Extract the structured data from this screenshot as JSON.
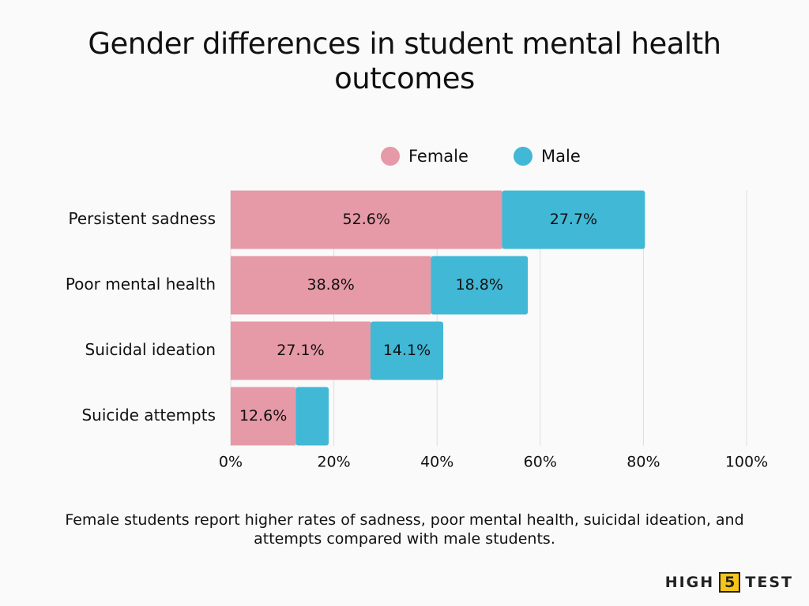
{
  "chart_data": {
    "type": "stacked-bar-horizontal",
    "title": "Gender differences in student mental health outcomes",
    "categories": [
      "Persistent sadness",
      "Poor mental health",
      "Suicidal ideation",
      "Suicide attempts"
    ],
    "series": [
      {
        "name": "Female",
        "color": "#e699a6",
        "values": [
          52.6,
          38.8,
          27.1,
          12.6
        ],
        "value_labels": [
          "52.6%",
          "38.8%",
          "27.1%",
          "12.6%"
        ]
      },
      {
        "name": "Male",
        "color": "#41b8d5",
        "values": [
          27.7,
          18.8,
          14.1,
          6.4
        ],
        "value_labels": [
          "27.7%",
          "18.8%",
          "14.1%",
          null
        ]
      }
    ],
    "xlim": [
      0,
      100
    ],
    "xticks": [
      {
        "value": 0,
        "label": "0%"
      },
      {
        "value": 20,
        "label": "20%"
      },
      {
        "value": 40,
        "label": "40%"
      },
      {
        "value": 60,
        "label": "60%"
      },
      {
        "value": 80,
        "label": "80%"
      },
      {
        "value": 100,
        "label": "100%"
      }
    ],
    "grid": true,
    "caption": "Female students report higher rates of sadness, poor mental health, suicidal ideation, and attempts compared with male students."
  },
  "brand": {
    "left": "HIGH",
    "mid": "5",
    "right": "TEST"
  }
}
